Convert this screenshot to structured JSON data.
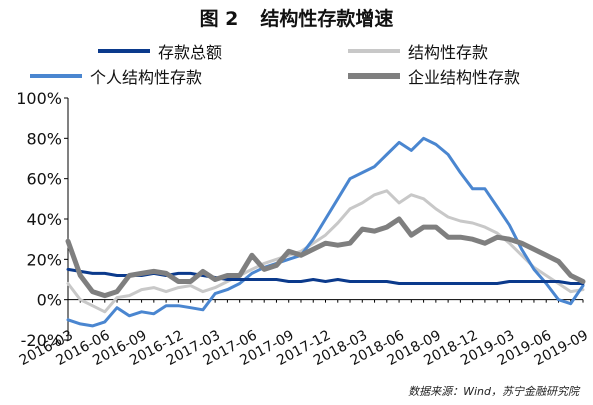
{
  "title": {
    "figure": "图 2",
    "text": "结构性存款增速"
  },
  "source": "数据来源：Wind，苏宁金融研究院",
  "chart_data": {
    "type": "line",
    "title": "结构性存款增速",
    "xlabel": "",
    "ylabel": "",
    "ylim": [
      -20,
      100
    ],
    "yticks": [
      "100%",
      "80%",
      "60%",
      "40%",
      "20%",
      "0%",
      "-20%"
    ],
    "grid": false,
    "legend_position": "top",
    "x": [
      "2016-03",
      "2016-04",
      "2016-05",
      "2016-06",
      "2016-07",
      "2016-08",
      "2016-09",
      "2016-10",
      "2016-11",
      "2016-12",
      "2017-01",
      "2017-02",
      "2017-03",
      "2017-04",
      "2017-05",
      "2017-06",
      "2017-07",
      "2017-08",
      "2017-09",
      "2017-10",
      "2017-11",
      "2017-12",
      "2018-01",
      "2018-02",
      "2018-03",
      "2018-04",
      "2018-05",
      "2018-06",
      "2018-07",
      "2018-08",
      "2018-09",
      "2018-10",
      "2018-11",
      "2018-12",
      "2019-01",
      "2019-02",
      "2019-03",
      "2019-04",
      "2019-05",
      "2019-06",
      "2019-07",
      "2019-08",
      "2019-09"
    ],
    "xticks": [
      "2016-03",
      "2016-06",
      "2016-09",
      "2016-12",
      "2017-03",
      "2017-06",
      "2017-09",
      "2017-12",
      "2018-03",
      "2018-06",
      "2018-09",
      "2018-12",
      "2019-03",
      "2019-06",
      "2019-09"
    ],
    "series": [
      {
        "name": "存款总额",
        "color": "#0b3a8c",
        "width": 3,
        "values": [
          15,
          14,
          13,
          13,
          12,
          12,
          12,
          13,
          12,
          13,
          13,
          12,
          11,
          10,
          10,
          10,
          10,
          10,
          9,
          9,
          10,
          9,
          10,
          9,
          9,
          9,
          9,
          8,
          8,
          8,
          8,
          8,
          8,
          8,
          8,
          8,
          9,
          9,
          9,
          9,
          9,
          8,
          8
        ]
      },
      {
        "name": "结构性存款",
        "color": "#c8c8c8",
        "width": 3,
        "values": [
          8,
          0,
          -3,
          -6,
          1,
          2,
          5,
          6,
          4,
          6,
          7,
          4,
          6,
          9,
          12,
          15,
          18,
          20,
          22,
          24,
          28,
          32,
          38,
          45,
          48,
          52,
          54,
          48,
          52,
          50,
          45,
          41,
          39,
          38,
          36,
          33,
          28,
          22,
          16,
          12,
          8,
          4,
          5
        ]
      },
      {
        "name": "个人结构性存款",
        "color": "#4a86d0",
        "width": 3,
        "values": [
          -10,
          -12,
          -13,
          -11,
          -4,
          -8,
          -6,
          -7,
          -3,
          -3,
          -4,
          -5,
          3,
          5,
          8,
          13,
          16,
          18,
          20,
          22,
          30,
          40,
          50,
          60,
          63,
          66,
          72,
          78,
          74,
          80,
          77,
          72,
          63,
          55,
          55,
          46,
          37,
          25,
          15,
          8,
          0,
          -2,
          7
        ]
      },
      {
        "name": "企业结构性存款",
        "color": "#7f7f7f",
        "width": 5,
        "values": [
          29,
          12,
          4,
          2,
          4,
          12,
          13,
          14,
          13,
          9,
          9,
          14,
          10,
          12,
          12,
          22,
          15,
          17,
          24,
          22,
          25,
          28,
          27,
          28,
          35,
          34,
          36,
          40,
          32,
          36,
          36,
          31,
          31,
          30,
          28,
          31,
          30,
          28,
          25,
          22,
          19,
          12,
          9
        ]
      }
    ]
  }
}
